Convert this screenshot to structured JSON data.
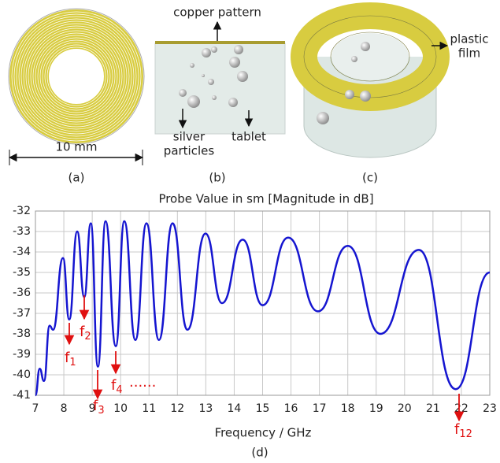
{
  "illustrations": {
    "a": {
      "dimension": "10 mm",
      "label": "(a)"
    },
    "b": {
      "top": "copper pattern",
      "particles": [
        "silver",
        "particles"
      ],
      "tablet": "tablet",
      "label": "(b)"
    },
    "c": {
      "film": [
        "plastic",
        "film"
      ],
      "label": "(c)"
    }
  },
  "chart_data": {
    "type": "line",
    "title": "Probe Value in sm [Magnitude in dB]",
    "x_label": "Frequency / GHz",
    "panel_label": "(d)",
    "x": [
      7,
      7.15,
      7.3,
      7.5,
      7.62,
      7.97,
      8.19,
      8.47,
      8.72,
      8.95,
      9.2,
      9.47,
      9.83,
      10.13,
      10.52,
      10.91,
      11.35,
      11.83,
      12.35,
      12.99,
      13.57,
      14.3,
      15.0,
      15.9,
      16.95,
      18.0,
      19.15,
      20.5,
      21.8,
      23
    ],
    "values": [
      -41,
      -39.7,
      -40.3,
      -37.6,
      -37.8,
      -34.3,
      -37.3,
      -33.0,
      -36.2,
      -32.6,
      -39.6,
      -32.5,
      -38.6,
      -32.5,
      -38.3,
      -32.6,
      -38.3,
      -32.6,
      -37.8,
      -33.1,
      -36.5,
      -33.4,
      -36.6,
      -33.3,
      -36.9,
      -33.7,
      -38.0,
      -33.9,
      -40.7,
      -35
    ],
    "color": "#1515d0",
    "xlim": [
      7,
      23
    ],
    "xticks": [
      7,
      8,
      9,
      10,
      11,
      12,
      13,
      14,
      15,
      16,
      17,
      18,
      19,
      20,
      21,
      22,
      23
    ],
    "ylim": [
      -41,
      -32
    ],
    "yticks": [
      -32,
      -33,
      -34,
      -35,
      -36,
      -37,
      -38,
      -39,
      -40,
      -41
    ],
    "grid": true,
    "annotations": [
      {
        "text": "f",
        "sub": "1"
      },
      {
        "text": "f",
        "sub": "2"
      },
      {
        "text": "f",
        "sub": "3"
      },
      {
        "text": "f",
        "sub": "4"
      },
      {
        "text": "f",
        "sub": "12"
      }
    ],
    "ellipsis": "......"
  }
}
